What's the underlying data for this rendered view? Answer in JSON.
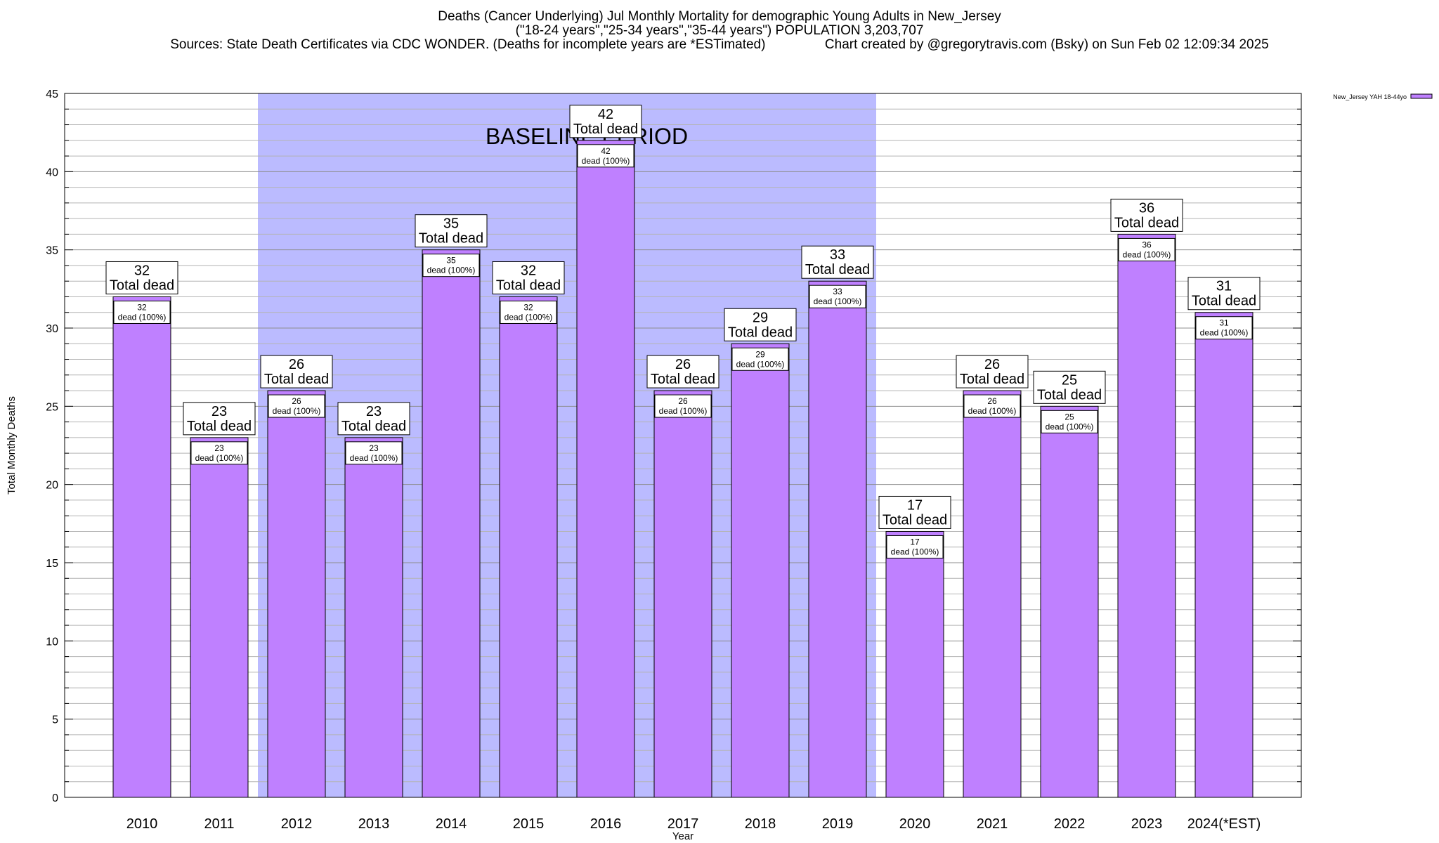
{
  "chart_data": {
    "type": "bar",
    "title": "Deaths (Cancer Underlying) Jul Monthly Mortality for demographic Young Adults in New_Jersey",
    "subtitle": "(\"18-24 years\",\"25-34 years\",\"35-44 years\") POPULATION 3,203,707",
    "sources": "Sources: State Death Certificates via CDC WONDER. (Deaths for incomplete years are *ESTimated)",
    "credit": "Chart created by @gregorytravis.com (Bsky) on Sun Feb 02 12:09:34 2025",
    "xlabel": "Year",
    "ylabel": "Total Monthly Deaths",
    "ylim": [
      0,
      45
    ],
    "yticks": [
      0,
      5,
      10,
      15,
      20,
      25,
      30,
      35,
      40,
      45
    ],
    "minor_tick_step": 1,
    "grid": true,
    "categories": [
      "2010",
      "2011",
      "2012",
      "2013",
      "2014",
      "2015",
      "2016",
      "2017",
      "2018",
      "2019",
      "2020",
      "2021",
      "2022",
      "2023",
      "2024(*EST)"
    ],
    "series": [
      {
        "name": "New_Jersey YAH 18-44yo",
        "color": "#bf80ff",
        "values": [
          32,
          23,
          26,
          23,
          35,
          32,
          42,
          26,
          29,
          33,
          17,
          26,
          25,
          36,
          31
        ]
      }
    ],
    "total_label_suffix": "Total dead",
    "segment_label_suffix": "dead (100%)",
    "baseline_period": {
      "label": "BASELINE PERIOD",
      "start": "2012",
      "end": "2019",
      "color": "#bbbbff"
    },
    "legend_position": "top-right"
  }
}
